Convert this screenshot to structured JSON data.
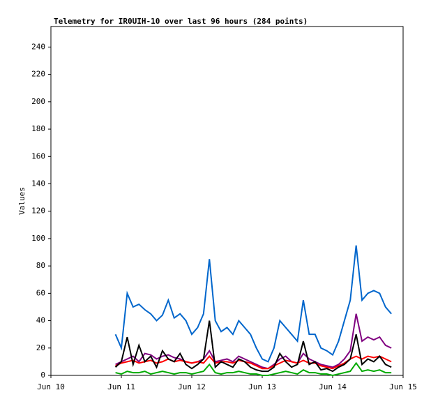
{
  "chart_data": {
    "type": "line",
    "title": "Telemetry for IR0UIH-10 over last 96 hours (284 points)",
    "y_label": "Values",
    "x": [
      22,
      24,
      26,
      28,
      30,
      32,
      34,
      36,
      38,
      40,
      42,
      44,
      46,
      48,
      50,
      52,
      54,
      56,
      58,
      60,
      62,
      64,
      66,
      68,
      70,
      72,
      74,
      76,
      78,
      80,
      82,
      84,
      86,
      88,
      90,
      92,
      94,
      96,
      98,
      100,
      102,
      104,
      106,
      108,
      110,
      112,
      114,
      116
    ],
    "xlim": [
      0,
      120
    ],
    "xticks": [
      {
        "value": 0,
        "label": "Jun 10"
      },
      {
        "value": 24,
        "label": "Jun 11"
      },
      {
        "value": 48,
        "label": "Jun 12"
      },
      {
        "value": 72,
        "label": "Jun 13"
      },
      {
        "value": 96,
        "label": "Jun 14"
      },
      {
        "value": 120,
        "label": "Jun 15"
      }
    ],
    "ylim": [
      0,
      255
    ],
    "yticks": [
      0,
      20,
      40,
      60,
      80,
      100,
      120,
      140,
      160,
      180,
      200,
      220,
      240
    ],
    "series": [
      {
        "color": "#0066cc",
        "values": [
          30,
          20,
          60,
          50,
          52,
          48,
          45,
          40,
          44,
          55,
          42,
          45,
          40,
          30,
          35,
          45,
          85,
          40,
          32,
          35,
          30,
          40,
          35,
          30,
          20,
          12,
          10,
          20,
          40,
          35,
          30,
          25,
          55,
          30,
          30,
          20,
          18,
          15,
          25,
          40,
          55,
          95,
          55,
          60,
          62,
          60,
          50,
          45
        ]
      },
      {
        "color": "#800080",
        "values": [
          8,
          10,
          12,
          14,
          10,
          16,
          15,
          12,
          14,
          15,
          13,
          12,
          10,
          9,
          10,
          12,
          18,
          10,
          11,
          12,
          10,
          14,
          12,
          10,
          8,
          6,
          5,
          8,
          12,
          14,
          10,
          9,
          16,
          12,
          10,
          8,
          7,
          6,
          8,
          12,
          18,
          45,
          25,
          28,
          26,
          28,
          22,
          20
        ]
      },
      {
        "color": "#ff0000",
        "values": [
          7,
          9,
          10,
          11,
          9,
          10,
          11,
          9,
          10,
          12,
          10,
          11,
          10,
          9,
          10,
          9,
          14,
          9,
          10,
          10,
          9,
          11,
          10,
          9,
          7,
          5,
          5,
          7,
          9,
          11,
          10,
          9,
          11,
          9,
          9,
          7,
          6,
          5,
          7,
          9,
          12,
          14,
          12,
          14,
          13,
          14,
          12,
          10
        ]
      },
      {
        "color": "#000000",
        "values": [
          6,
          10,
          28,
          8,
          22,
          10,
          14,
          6,
          18,
          12,
          10,
          16,
          8,
          5,
          8,
          12,
          40,
          6,
          10,
          8,
          6,
          12,
          10,
          6,
          4,
          3,
          3,
          6,
          16,
          10,
          6,
          8,
          25,
          8,
          10,
          4,
          5,
          3,
          6,
          8,
          12,
          30,
          8,
          12,
          10,
          14,
          8,
          6
        ]
      },
      {
        "color": "#00aa00",
        "values": [
          2,
          1,
          3,
          2,
          2,
          3,
          1,
          2,
          3,
          2,
          1,
          2,
          2,
          1,
          2,
          3,
          8,
          2,
          1,
          2,
          2,
          3,
          2,
          1,
          1,
          0,
          0,
          1,
          2,
          3,
          2,
          1,
          4,
          2,
          2,
          1,
          1,
          0,
          1,
          2,
          3,
          9,
          3,
          4,
          3,
          4,
          2,
          2
        ]
      }
    ]
  }
}
